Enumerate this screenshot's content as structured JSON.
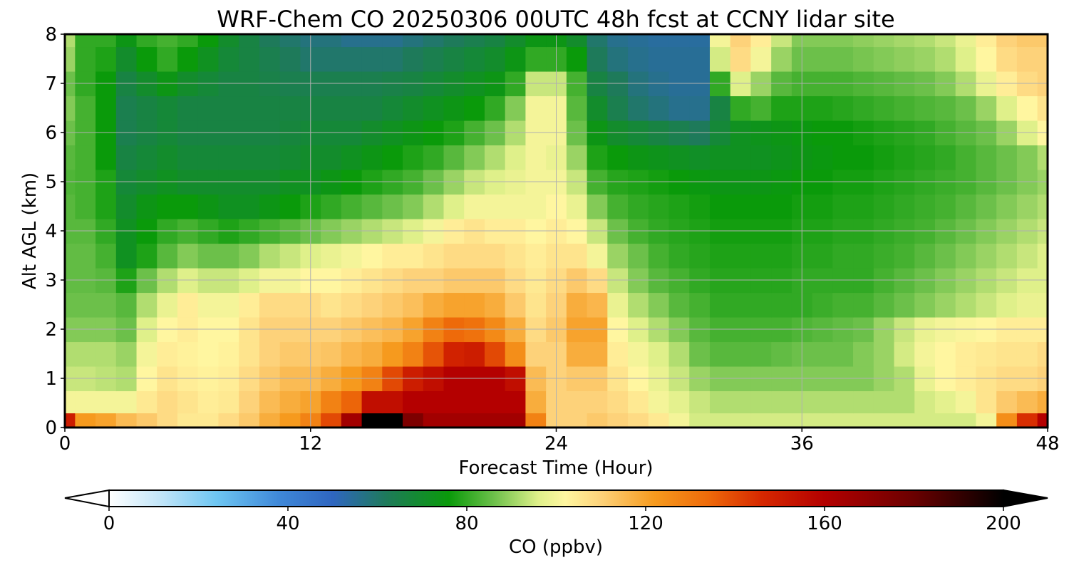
{
  "chart_data": {
    "type": "heatmap",
    "title": "WRF-Chem CO  20250306 00UTC 48h fcst at CCNY lidar site",
    "xlabel": "Forecast Time (Hour)",
    "ylabel": "Alt AGL (km)",
    "xlim": [
      0,
      48
    ],
    "ylim": [
      0,
      8
    ],
    "x_ticks": [
      "0",
      "12",
      "24",
      "36",
      "48"
    ],
    "y_ticks": [
      "0",
      "1",
      "2",
      "3",
      "4",
      "5",
      "6",
      "7",
      "8"
    ],
    "grid": true,
    "x": [
      0,
      1,
      2,
      3,
      4,
      5,
      6,
      7,
      8,
      9,
      10,
      11,
      12,
      13,
      14,
      15,
      16,
      17,
      18,
      19,
      20,
      21,
      22,
      23,
      24,
      25,
      26,
      27,
      28,
      29,
      30,
      31,
      32,
      33,
      34,
      35,
      36,
      37,
      38,
      39,
      40,
      41,
      42,
      43,
      44,
      45,
      46,
      47,
      48
    ],
    "y": [
      0.1,
      0.5,
      1,
      1.5,
      2,
      2.5,
      3,
      3.5,
      4,
      4.5,
      5,
      5.5,
      6,
      6.5,
      7,
      7.5,
      8
    ],
    "z": [
      [
        150,
        122,
        120,
        115,
        112,
        108,
        105,
        105,
        108,
        112,
        118,
        122,
        128,
        140,
        165,
        200,
        200,
        175,
        165,
        165,
        165,
        165,
        165,
        128,
        110,
        110,
        112,
        110,
        108,
        105,
        100,
        95,
        95,
        95,
        95,
        95,
        95,
        95,
        95,
        95,
        95,
        95,
        95,
        95,
        95,
        100,
        125,
        145,
        160
      ],
      [
        100,
        100,
        100,
        100,
        105,
        108,
        106,
        104,
        105,
        110,
        115,
        118,
        120,
        128,
        135,
        155,
        155,
        160,
        160,
        160,
        160,
        160,
        160,
        118,
        110,
        110,
        110,
        108,
        105,
        100,
        97,
        94,
        92,
        92,
        92,
        92,
        92,
        92,
        92,
        92,
        92,
        92,
        95,
        97,
        100,
        106,
        112,
        115,
        118
      ],
      [
        94,
        94,
        93,
        92,
        102,
        106,
        104,
        103,
        104,
        108,
        112,
        115,
        115,
        118,
        122,
        128,
        140,
        150,
        155,
        160,
        160,
        160,
        155,
        115,
        110,
        112,
        112,
        106,
        102,
        98,
        94,
        90,
        88,
        88,
        88,
        88,
        88,
        88,
        88,
        88,
        90,
        92,
        98,
        102,
        104,
        106,
        108,
        108,
        110
      ],
      [
        92,
        92,
        92,
        90,
        100,
        104,
        103,
        102,
        103,
        106,
        110,
        112,
        112,
        113,
        116,
        118,
        122,
        128,
        138,
        148,
        150,
        140,
        125,
        110,
        110,
        118,
        118,
        104,
        100,
        96,
        92,
        86,
        84,
        84,
        84,
        85,
        86,
        86,
        86,
        88,
        90,
        95,
        100,
        102,
        104,
        105,
        106,
        106,
        108
      ],
      [
        88,
        88,
        88,
        86,
        96,
        102,
        104,
        102,
        102,
        106,
        110,
        110,
        110,
        110,
        112,
        114,
        116,
        120,
        128,
        134,
        132,
        126,
        118,
        108,
        112,
        120,
        120,
        102,
        96,
        92,
        88,
        84,
        82,
        82,
        82,
        82,
        83,
        84,
        85,
        86,
        90,
        94,
        98,
        100,
        101,
        102,
        104,
        104,
        104
      ],
      [
        86,
        86,
        86,
        84,
        92,
        98,
        104,
        100,
        100,
        104,
        108,
        108,
        108,
        106,
        108,
        110,
        112,
        114,
        118,
        120,
        120,
        118,
        112,
        106,
        110,
        118,
        116,
        98,
        92,
        88,
        84,
        82,
        80,
        80,
        80,
        80,
        80,
        81,
        82,
        82,
        84,
        86,
        88,
        90,
        92,
        94,
        96,
        98,
        98
      ],
      [
        85,
        85,
        84,
        78,
        86,
        92,
        96,
        94,
        94,
        96,
        100,
        100,
        102,
        102,
        104,
        106,
        108,
        110,
        110,
        112,
        112,
        112,
        108,
        105,
        108,
        112,
        108,
        94,
        88,
        84,
        82,
        80,
        79,
        79,
        79,
        79,
        80,
        80,
        80,
        80,
        82,
        84,
        86,
        88,
        90,
        92,
        94,
        96,
        96
      ],
      [
        85,
        85,
        82,
        72,
        78,
        84,
        88,
        86,
        86,
        88,
        92,
        94,
        96,
        98,
        100,
        102,
        104,
        104,
        106,
        108,
        108,
        108,
        106,
        104,
        106,
        106,
        100,
        90,
        86,
        82,
        80,
        79,
        78,
        78,
        78,
        78,
        79,
        79,
        80,
        80,
        81,
        82,
        84,
        86,
        88,
        90,
        92,
        94,
        96
      ],
      [
        84,
        84,
        80,
        72,
        76,
        80,
        82,
        80,
        78,
        80,
        82,
        84,
        86,
        88,
        90,
        92,
        94,
        96,
        100,
        104,
        106,
        104,
        104,
        102,
        104,
        102,
        94,
        86,
        82,
        80,
        79,
        78,
        77,
        77,
        77,
        77,
        78,
        78,
        79,
        79,
        80,
        81,
        82,
        84,
        86,
        88,
        90,
        92,
        94
      ],
      [
        84,
        82,
        78,
        70,
        74,
        76,
        76,
        74,
        72,
        72,
        74,
        76,
        78,
        80,
        82,
        84,
        86,
        88,
        92,
        96,
        100,
        100,
        100,
        100,
        102,
        98,
        88,
        82,
        80,
        79,
        78,
        77,
        76,
        76,
        76,
        76,
        77,
        77,
        78,
        78,
        79,
        80,
        81,
        82,
        84,
        86,
        88,
        90,
        92
      ],
      [
        83,
        82,
        78,
        68,
        70,
        72,
        70,
        70,
        70,
        70,
        70,
        72,
        72,
        74,
        76,
        78,
        80,
        82,
        86,
        90,
        94,
        96,
        98,
        100,
        100,
        94,
        82,
        79,
        78,
        77,
        76,
        75,
        74,
        74,
        74,
        75,
        76,
        76,
        77,
        77,
        78,
        79,
        80,
        81,
        82,
        84,
        86,
        88,
        90
      ],
      [
        84,
        82,
        76,
        66,
        68,
        70,
        68,
        68,
        68,
        68,
        68,
        69,
        70,
        70,
        72,
        74,
        76,
        78,
        80,
        84,
        88,
        92,
        96,
        100,
        98,
        90,
        78,
        76,
        74,
        73,
        72,
        71,
        72,
        72,
        72,
        73,
        74,
        75,
        76,
        76,
        77,
        78,
        79,
        80,
        82,
        84,
        86,
        88,
        92
      ],
      [
        86,
        82,
        76,
        64,
        66,
        68,
        66,
        66,
        66,
        66,
        66,
        67,
        68,
        68,
        68,
        70,
        72,
        74,
        76,
        78,
        82,
        86,
        92,
        100,
        100,
        86,
        74,
        70,
        68,
        66,
        64,
        62,
        68,
        72,
        73,
        74,
        75,
        76,
        76,
        77,
        78,
        79,
        80,
        82,
        84,
        86,
        90,
        96,
        102
      ],
      [
        88,
        82,
        76,
        64,
        66,
        68,
        66,
        66,
        66,
        66,
        66,
        66,
        66,
        66,
        66,
        66,
        68,
        70,
        72,
        74,
        76,
        80,
        88,
        100,
        100,
        84,
        70,
        64,
        60,
        58,
        56,
        56,
        66,
        80,
        82,
        78,
        78,
        78,
        79,
        80,
        81,
        82,
        83,
        84,
        86,
        90,
        96,
        102,
        106
      ],
      [
        86,
        80,
        76,
        66,
        70,
        74,
        70,
        68,
        66,
        66,
        65,
        64,
        64,
        64,
        64,
        64,
        65,
        66,
        68,
        70,
        72,
        74,
        80,
        94,
        94,
        82,
        66,
        62,
        58,
        56,
        55,
        55,
        80,
        96,
        90,
        84,
        82,
        82,
        82,
        83,
        84,
        85,
        86,
        88,
        92,
        98,
        104,
        108,
        110
      ],
      [
        90,
        80,
        78,
        70,
        76,
        80,
        76,
        72,
        68,
        66,
        64,
        62,
        60,
        60,
        60,
        60,
        60,
        62,
        64,
        66,
        68,
        70,
        74,
        80,
        80,
        76,
        62,
        58,
        56,
        55,
        55,
        55,
        95,
        108,
        100,
        90,
        86,
        86,
        86,
        87,
        88,
        89,
        90,
        92,
        96,
        102,
        108,
        110,
        110
      ],
      [
        92,
        80,
        80,
        74,
        80,
        82,
        80,
        76,
        70,
        66,
        62,
        60,
        58,
        58,
        56,
        56,
        56,
        58,
        60,
        62,
        64,
        66,
        70,
        74,
        74,
        70,
        60,
        56,
        55,
        54,
        54,
        54,
        100,
        110,
        104,
        94,
        88,
        88,
        88,
        89,
        90,
        91,
        92,
        94,
        98,
        104,
        110,
        112,
        112
      ]
    ]
  },
  "colorbar": {
    "label": "CO  (ppbv)",
    "ticks": [
      "0",
      "40",
      "80",
      "120",
      "160",
      "200"
    ],
    "min": 0,
    "max": 200,
    "extend": "both",
    "stops": [
      [
        0,
        "#ffffff"
      ],
      [
        12,
        "#bfe4f8"
      ],
      [
        24,
        "#6ec6f2"
      ],
      [
        38,
        "#3f88d8"
      ],
      [
        50,
        "#2f66c0"
      ],
      [
        62,
        "#1e7a5a"
      ],
      [
        76,
        "#0a9a0a"
      ],
      [
        86,
        "#6cc04a"
      ],
      [
        96,
        "#dff08a"
      ],
      [
        102,
        "#fff6a0"
      ],
      [
        110,
        "#fdd27a"
      ],
      [
        122,
        "#f69a1e"
      ],
      [
        134,
        "#ee6a0a"
      ],
      [
        146,
        "#d62800"
      ],
      [
        160,
        "#b40000"
      ],
      [
        180,
        "#6a0000"
      ],
      [
        200,
        "#000000"
      ]
    ]
  }
}
